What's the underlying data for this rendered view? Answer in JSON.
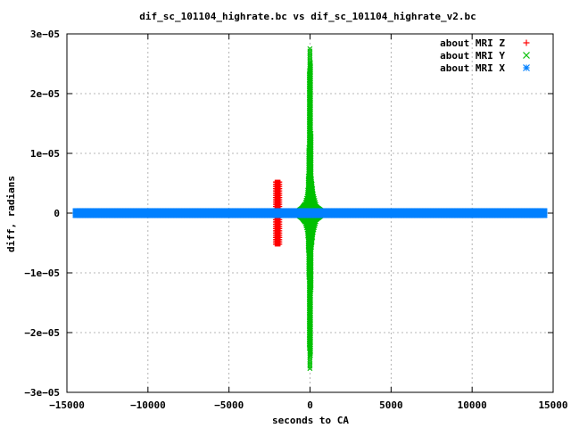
{
  "chart_data": {
    "type": "scatter",
    "title": "dif_sc_101104_highrate.bc vs dif_sc_101104_highrate_v2.bc",
    "xlabel": "seconds to CA",
    "ylabel": "diff, radians",
    "xlim": [
      -15000,
      15000
    ],
    "ylim": [
      -3e-05,
      3e-05
    ],
    "grid": true,
    "legend_position": "top-right",
    "x_ticks": [
      -15000,
      -10000,
      -5000,
      0,
      5000,
      10000,
      15000
    ],
    "x_tick_labels": [
      "−15000",
      "−10000",
      "−5000",
      "0",
      "5000",
      "10000",
      "15000"
    ],
    "y_ticks": [
      -3e-05,
      -2e-05,
      -1e-05,
      0,
      1e-05,
      2e-05,
      3e-05
    ],
    "y_tick_labels": [
      "−3e−05",
      "−2e−05",
      "−1e−05",
      "0",
      "1e−05",
      "2e−05",
      "3e−05"
    ],
    "series": [
      {
        "name": "about MRI Z",
        "marker": "+",
        "color": "#ff0000",
        "x_range": [
          -2150,
          -1850
        ],
        "y_envelope": [
          -5.2e-06,
          5.2e-06
        ]
      },
      {
        "name": "about MRI Y",
        "marker": "x",
        "color": "#00c000",
        "x_range": [
          -700,
          700
        ],
        "envelope": [
          {
            "x": -700,
            "ymin": -4e-07,
            "ymax": 4e-07
          },
          {
            "x": -500,
            "ymin": -8e-07,
            "ymax": 8e-07
          },
          {
            "x": -300,
            "ymin": -1.5e-06,
            "ymax": 1.5e-06
          },
          {
            "x": -150,
            "ymin": -3e-06,
            "ymax": 3e-06
          },
          {
            "x": -80,
            "ymin": -8e-06,
            "ymax": 8e-06
          },
          {
            "x": -30,
            "ymin": -2.6e-05,
            "ymax": 2.75e-05
          },
          {
            "x": 20,
            "ymin": -2.6e-05,
            "ymax": 2.75e-05
          },
          {
            "x": 80,
            "ymin": -6e-06,
            "ymax": 6e-06
          },
          {
            "x": 200,
            "ymin": -3e-06,
            "ymax": 3e-06
          },
          {
            "x": 400,
            "ymin": -1e-06,
            "ymax": 1e-06
          },
          {
            "x": 700,
            "ymin": -4e-07,
            "ymax": 4e-07
          }
        ]
      },
      {
        "name": "about MRI X",
        "marker": "*",
        "color": "#0080ff",
        "x_range": [
          -14500,
          14500
        ],
        "y_envelope": [
          -4e-07,
          4e-07
        ]
      }
    ]
  }
}
